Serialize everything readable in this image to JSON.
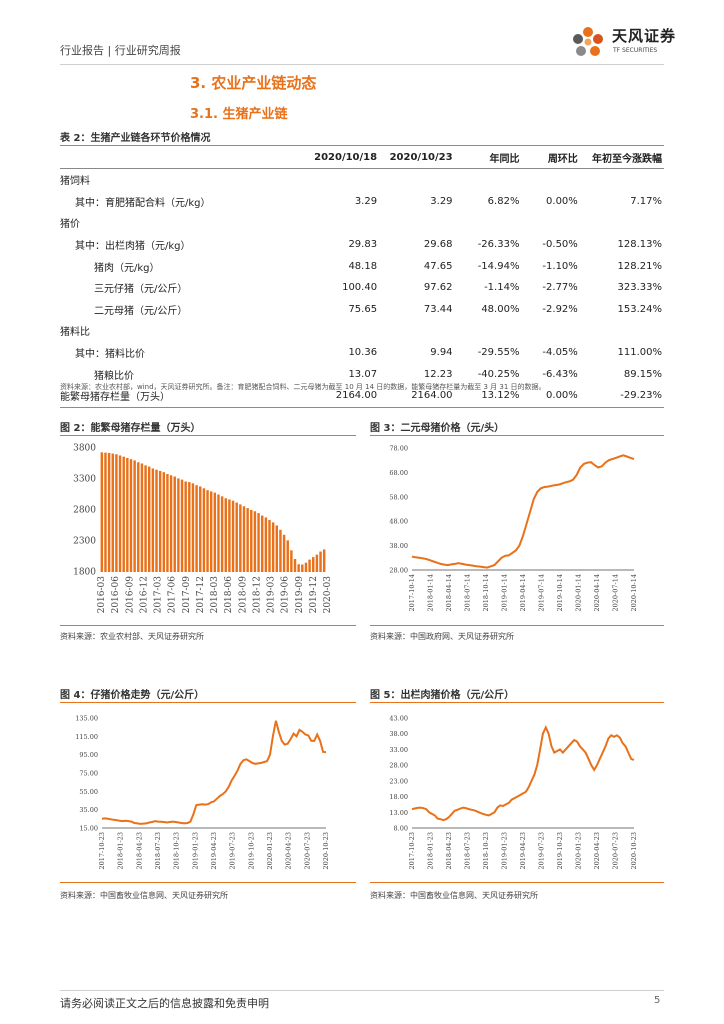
{
  "header": {
    "breadcrumb": "行业报告 | 行业研究周报",
    "logo_cn": "天风证券",
    "logo_en": "TF SECURITIES"
  },
  "section": {
    "title": "3. 农业产业链动态",
    "subtitle": "3.1. 生猪产业链"
  },
  "table": {
    "caption": "表 2：生猪产业链各环节价格情况",
    "headers": [
      "",
      "2020/10/18",
      "2020/10/23",
      "年同比",
      "周环比",
      "年初至今涨跌幅"
    ],
    "rows": [
      {
        "label": "猪饲料",
        "indent": 0,
        "v": [
          "",
          "",
          "",
          "",
          ""
        ]
      },
      {
        "label": "其中：育肥猪配合料（元/kg）",
        "indent": 1,
        "v": [
          "3.29",
          "3.29",
          "6.82%",
          "0.00%",
          "7.17%"
        ]
      },
      {
        "label": "猪价",
        "indent": 0,
        "v": [
          "",
          "",
          "",
          "",
          ""
        ]
      },
      {
        "label": "其中：出栏肉猪（元/kg）",
        "indent": 1,
        "v": [
          "29.83",
          "29.68",
          "-26.33%",
          "-0.50%",
          "128.13%"
        ]
      },
      {
        "label": "猪肉（元/kg）",
        "indent": 2,
        "v": [
          "48.18",
          "47.65",
          "-14.94%",
          "-1.10%",
          "128.21%"
        ]
      },
      {
        "label": "三元仔猪（元/公斤）",
        "indent": 2,
        "v": [
          "100.40",
          "97.62",
          "-1.14%",
          "-2.77%",
          "323.33%"
        ]
      },
      {
        "label": "二元母猪（元/公斤）",
        "indent": 2,
        "v": [
          "75.65",
          "73.44",
          "48.00%",
          "-2.92%",
          "153.24%"
        ]
      },
      {
        "label": "猪料比",
        "indent": 0,
        "v": [
          "",
          "",
          "",
          "",
          ""
        ]
      },
      {
        "label": "其中：猪料比价",
        "indent": 1,
        "v": [
          "10.36",
          "9.94",
          "-29.55%",
          "-4.05%",
          "111.00%"
        ]
      },
      {
        "label": "猪粮比价",
        "indent": 2,
        "v": [
          "13.07",
          "12.23",
          "-40.25%",
          "-6.43%",
          "89.15%"
        ]
      },
      {
        "label": "能繁母猪存栏量（万头）",
        "indent": 0,
        "v": [
          "2164.00",
          "2164.00",
          "13.12%",
          "0.00%",
          "-29.23%"
        ]
      }
    ],
    "note": "资料来源：农业农村部，wind，天风证券研究所。备注：育肥猪配合饲料、二元母猪为截至 10 月 14 日的数据，能繁母猪存栏量为截至 3 月 31 日的数据。"
  },
  "figures": {
    "fig2": {
      "caption": "图 2：能繁母猪存栏量（万头）",
      "source": "资料来源：农业农村部、天风证券研究所"
    },
    "fig3": {
      "caption": "图 3：二元母猪价格（元/头）",
      "source": "资料来源：中国政府网、天风证券研究所"
    },
    "fig4": {
      "caption": "图 4：仔猪价格走势（元/公斤）",
      "source": "资料来源：中国畜牧业信息网、天风证券研究所"
    },
    "fig5": {
      "caption": "图 5：出栏肉猪价格（元/公斤）",
      "source": "资料来源：中国畜牧业信息网、天风证券研究所"
    }
  },
  "footer": {
    "disclaimer": "请务必阅读正文之后的信息披露和免责申明",
    "page": "5"
  },
  "chart_data": [
    {
      "id": "fig2",
      "type": "bar",
      "title": "能繁母猪存栏量（万头）",
      "color": "#e8711a",
      "ylim": [
        1800,
        3800
      ],
      "yticks": [
        "3800",
        "3300",
        "2800",
        "2300",
        "1800"
      ],
      "xticks": [
        "2016-03",
        "2016-06",
        "2016-09",
        "2016-12",
        "2017-03",
        "2017-06",
        "2017-09",
        "2017-12",
        "2018-03",
        "2018-06",
        "2018-09",
        "2018-12",
        "2019-03",
        "2019-06",
        "2019-09",
        "2019-12",
        "2020-03"
      ],
      "values": [
        3730,
        3725,
        3720,
        3710,
        3700,
        3680,
        3660,
        3640,
        3620,
        3600,
        3570,
        3550,
        3520,
        3500,
        3470,
        3450,
        3430,
        3410,
        3380,
        3360,
        3340,
        3310,
        3290,
        3260,
        3250,
        3230,
        3200,
        3180,
        3150,
        3120,
        3100,
        3080,
        3050,
        3020,
        2990,
        2970,
        2950,
        2920,
        2890,
        2860,
        2830,
        2800,
        2780,
        2750,
        2710,
        2680,
        2640,
        2600,
        2550,
        2480,
        2400,
        2310,
        2150,
        2010,
        1925,
        1920,
        1950,
        2000,
        2040,
        2080,
        2130,
        2164
      ]
    },
    {
      "id": "fig3",
      "type": "line",
      "title": "二元母猪价格（元/头）",
      "color": "#e8711a",
      "ylim": [
        28,
        78
      ],
      "yticks": [
        "78.00",
        "68.00",
        "58.00",
        "48.00",
        "38.00",
        "28.00"
      ],
      "xticks": [
        "2017-10-14",
        "2018-01-14",
        "2018-04-14",
        "2018-07-14",
        "2018-10-14",
        "2019-01-14",
        "2019-04-14",
        "2019-07-14",
        "2019-10-14",
        "2020-01-14",
        "2020-04-14",
        "2020-07-14",
        "2020-10-14"
      ],
      "values": [
        33.5,
        33.2,
        33,
        32.8,
        32.5,
        32,
        31.5,
        31,
        30.5,
        30.2,
        30,
        30.3,
        30.5,
        30.8,
        30.5,
        30.2,
        30,
        29.8,
        29.5,
        29.4,
        29.2,
        29,
        29.5,
        30,
        31.5,
        33,
        33.8,
        34,
        35,
        36,
        38,
        42,
        47,
        52,
        57,
        60,
        61.5,
        62,
        62.2,
        62.5,
        62.8,
        63,
        63.5,
        64,
        64.3,
        65,
        67,
        70,
        71.5,
        72,
        72.2,
        71,
        70,
        70.5,
        72,
        73,
        73.5,
        74,
        74.5,
        75,
        74.5,
        74,
        73.44
      ]
    },
    {
      "id": "fig4",
      "type": "line",
      "title": "仔猪价格走势（元/公斤）",
      "color": "#e8711a",
      "ylim": [
        15,
        135
      ],
      "yticks": [
        "135.00",
        "115.00",
        "95.00",
        "75.00",
        "55.00",
        "35.00",
        "15.00"
      ],
      "xticks": [
        "2017-10-23",
        "2018-01-23",
        "2018-04-23",
        "2018-07-23",
        "2018-10-23",
        "2019-01-23",
        "2019-04-23",
        "2019-07-23",
        "2019-10-23",
        "2020-01-23",
        "2020-04-23",
        "2020-07-23",
        "2020-10-23"
      ],
      "values": [
        25,
        25.5,
        25,
        24.5,
        24,
        23.5,
        23,
        22.5,
        23,
        22.5,
        22,
        20.5,
        20,
        19.5,
        19.8,
        20,
        21,
        21.5,
        22.5,
        22,
        21.8,
        21.5,
        21,
        21.5,
        22,
        21.5,
        21,
        20.5,
        20,
        20.5,
        22,
        30,
        40,
        40.5,
        41,
        40.5,
        41,
        43,
        44,
        47,
        50,
        52,
        55,
        60,
        67,
        72,
        78,
        85,
        89,
        90,
        88,
        86,
        85,
        85.5,
        86,
        87,
        88,
        95,
        115,
        132,
        120,
        110,
        106,
        107,
        112,
        118,
        115,
        122,
        120,
        117,
        116,
        110,
        110,
        117,
        110,
        98,
        97.62
      ]
    },
    {
      "id": "fig5",
      "type": "line",
      "title": "出栏肉猪价格（元/公斤）",
      "color": "#e8711a",
      "ylim": [
        8,
        43
      ],
      "yticks": [
        "43.00",
        "38.00",
        "33.00",
        "28.00",
        "23.00",
        "18.00",
        "13.00",
        "8.00"
      ],
      "xticks": [
        "2017-10-23",
        "2018-01-23",
        "2018-04-23",
        "2018-07-23",
        "2018-10-23",
        "2019-01-23",
        "2019-04-23",
        "2019-07-23",
        "2019-10-23",
        "2020-01-23",
        "2020-04-23",
        "2020-07-23",
        "2020-10-23"
      ],
      "values": [
        14,
        14.2,
        14.4,
        14.5,
        14.3,
        14,
        13,
        12.5,
        12,
        11,
        10.8,
        10.5,
        10.8,
        11.5,
        12.5,
        13.5,
        13.8,
        14.2,
        14.5,
        14.3,
        14,
        13.8,
        13.6,
        13.2,
        12.8,
        12.5,
        12.2,
        12,
        12.5,
        13,
        14.5,
        15.2,
        15,
        15.5,
        16,
        17,
        17.5,
        18,
        18.5,
        19,
        19.5,
        21,
        23,
        25,
        28,
        33,
        38,
        40,
        38,
        34,
        32,
        32.5,
        33,
        32,
        33,
        34,
        35,
        36,
        35.5,
        34,
        33,
        32,
        30,
        28,
        26.5,
        28,
        30,
        32,
        34,
        36.5,
        37.5,
        37,
        37.5,
        36.8,
        35,
        34,
        32,
        30,
        29.68
      ]
    }
  ]
}
